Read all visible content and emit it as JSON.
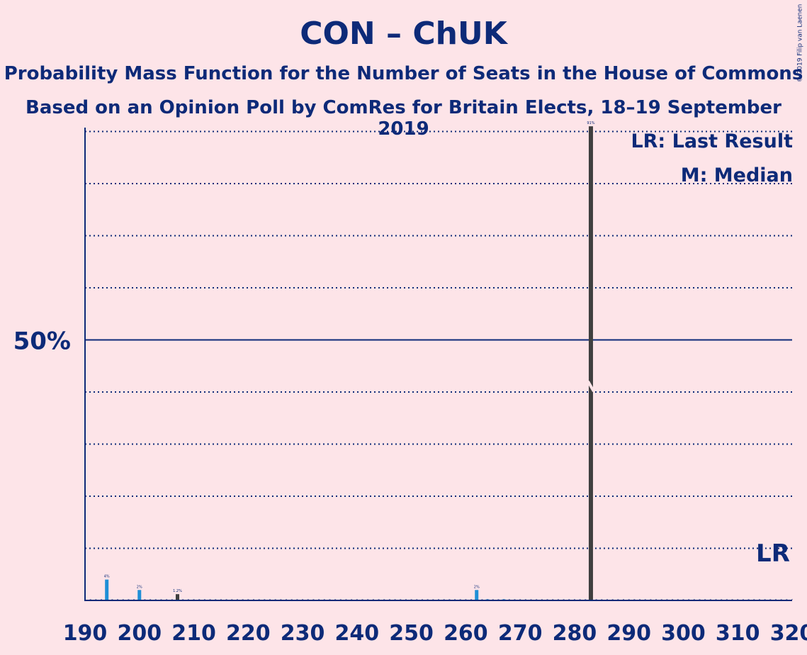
{
  "title": "CON – ChUK",
  "subtitle1": "Probability Mass Function for the Number of Seats in the House of Commons",
  "subtitle2": "Based on an Opinion Poll by ComRes for Britain Elects, 18–19 September 2019",
  "copyright": "© 2019 Filip van Laenen",
  "legend": {
    "last_result": "LR: Last Result",
    "median": "M: Median"
  },
  "markers": {
    "last_result_label": "LR",
    "last_result_seat": 317,
    "median_seat": 283
  },
  "colors": {
    "background": "#fde4e8",
    "text": "#0d2a78",
    "bar_blue": "#1f8fd6",
    "bar_dark": "#3f3f3f"
  },
  "chart_data": {
    "type": "bar",
    "xlabel": "",
    "ylabel": "",
    "xlim": [
      190,
      320
    ],
    "ylim": [
      0,
      100
    ],
    "xticks": [
      "190",
      "200",
      "210",
      "220",
      "230",
      "240",
      "250",
      "260",
      "270",
      "280",
      "290",
      "300",
      "310",
      "320"
    ],
    "ytick_label": "50%",
    "ytick_value": 50,
    "gridlines": [
      10,
      20,
      30,
      40,
      60,
      70,
      80,
      90
    ],
    "bars": [
      {
        "seat": 194,
        "value": 4,
        "label": "4%",
        "color": "blue"
      },
      {
        "seat": 200,
        "value": 2,
        "label": "2%",
        "color": "blue"
      },
      {
        "seat": 207,
        "value": 1.2,
        "label": "1.2%",
        "color": "dark"
      },
      {
        "seat": 262,
        "value": 2,
        "label": "2%",
        "color": "blue"
      },
      {
        "seat": 264,
        "value": 0.2,
        "label": "",
        "color": "blue"
      },
      {
        "seat": 267,
        "value": 0.2,
        "label": "",
        "color": "blue"
      },
      {
        "seat": 283,
        "value": 91,
        "label": "91%",
        "color": "dark"
      }
    ]
  }
}
